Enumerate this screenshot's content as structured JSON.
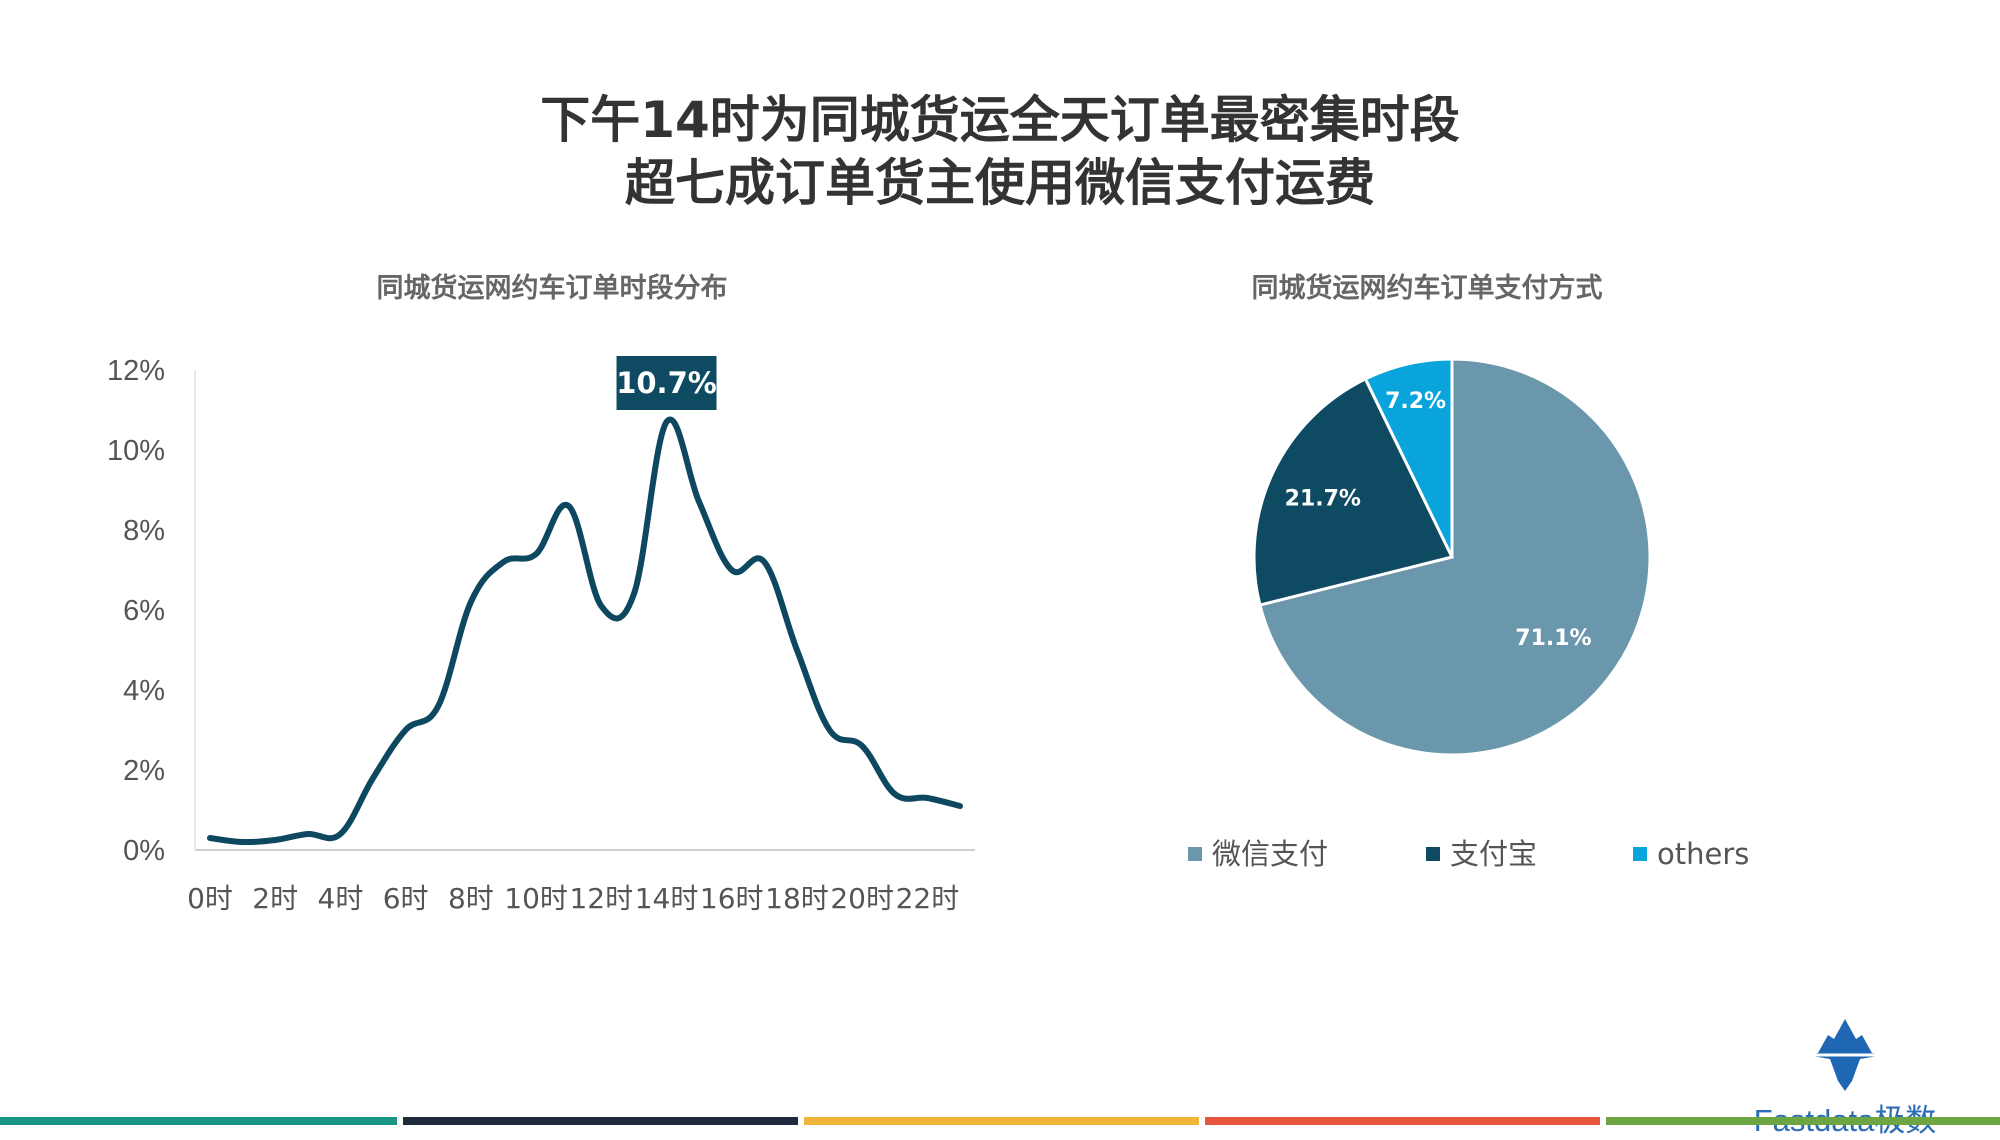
{
  "title": {
    "line1": "下午14时为同城货运全天订单最密集时段",
    "line2": "超七成订单货主使用微信支付运费"
  },
  "logo": {
    "text": "Fastdata极数",
    "icon": "iceberg-icon"
  },
  "colors": {
    "line": "#0e4860",
    "wechat": "#6a97ab",
    "alipay": "#0e4b63",
    "others": "#0aa4dc",
    "callout_bg": "#0e4b63",
    "bars": [
      "#1b9586",
      "#1d2b3c",
      "#f0b63c",
      "#e8543c",
      "#6ca541"
    ]
  },
  "chart_data": [
    {
      "type": "line",
      "title": "同城货运网约车订单时段分布",
      "x": [
        0,
        1,
        2,
        3,
        4,
        5,
        6,
        7,
        8,
        9,
        10,
        11,
        12,
        13,
        14,
        15,
        16,
        17,
        18,
        19,
        20,
        21,
        22,
        23
      ],
      "x_tick_labels": [
        "0时",
        "2时",
        "4时",
        "6时",
        "8时",
        "10时",
        "12时",
        "14时",
        "16时",
        "18时",
        "20时",
        "22时"
      ],
      "values": [
        0.3,
        0.2,
        0.25,
        0.4,
        0.4,
        1.8,
        3.0,
        3.6,
        6.2,
        7.2,
        7.4,
        8.6,
        6.1,
        6.4,
        10.7,
        8.7,
        7.0,
        7.2,
        5.0,
        3.0,
        2.6,
        1.4,
        1.3,
        1.1
      ],
      "y_tick_labels": [
        "0%",
        "2%",
        "4%",
        "6%",
        "8%",
        "10%",
        "12%"
      ],
      "ylim": [
        0,
        12
      ],
      "annotation": {
        "x": 14,
        "label": "10.7%"
      }
    },
    {
      "type": "pie",
      "title": "同城货运网约车订单支付方式",
      "labels": [
        "微信支付",
        "支付宝",
        "others"
      ],
      "values": [
        71.1,
        21.7,
        7.2
      ],
      "value_labels": [
        "71.1%",
        "21.7%",
        "7.2%"
      ]
    }
  ]
}
